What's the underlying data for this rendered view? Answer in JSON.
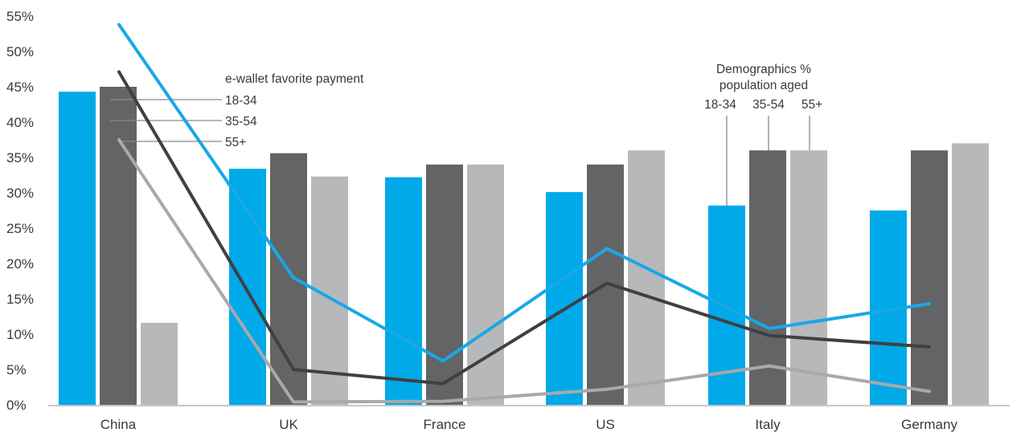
{
  "chart_data": {
    "type": "bar",
    "categories": [
      "China",
      "UK",
      "France",
      "US",
      "Italy",
      "Germany"
    ],
    "ylim": [
      0,
      55
    ],
    "y_ticks": [
      "0%",
      "5%",
      "10%",
      "15%",
      "20%",
      "25%",
      "30%",
      "35%",
      "40%",
      "45%",
      "50%",
      "55%"
    ],
    "grid": false,
    "bar_series": [
      {
        "key": "demo_18_34",
        "color": "#00a9e8",
        "values": [
          44.3,
          33.4,
          32.2,
          30.1,
          28.2,
          27.5
        ]
      },
      {
        "key": "demo_35_54",
        "color": "#636466",
        "values": [
          45.0,
          35.6,
          34.0,
          34.0,
          36.0,
          36.0
        ]
      },
      {
        "key": "demo_55_plus",
        "color": "#b7b8ba",
        "values": [
          11.6,
          32.3,
          34.0,
          36.0,
          36.0,
          37.0
        ]
      }
    ],
    "line_series": [
      {
        "key": "wallet_18_34",
        "color": "#18a9e6",
        "values": [
          53.8,
          18.0,
          6.2,
          22.1,
          10.8,
          14.3
        ]
      },
      {
        "key": "wallet_35_54",
        "color": "#3f4042",
        "values": [
          47.1,
          5.0,
          3.0,
          17.2,
          9.8,
          8.2
        ]
      },
      {
        "key": "wallet_55_plus",
        "color": "#a8a9ab",
        "values": [
          37.5,
          0.4,
          0.5,
          2.2,
          5.5,
          1.9
        ]
      }
    ],
    "annotations": {
      "wallet": {
        "title": "e-wallet favorite payment",
        "labels": [
          "18-34",
          "35-54",
          "55+"
        ]
      },
      "demographics": {
        "title_line1": "Demographics %",
        "title_line2": "population aged",
        "labels": [
          "18-34",
          "35-54",
          "55+"
        ]
      }
    },
    "axis_color": "#b5b5b5",
    "leader_color": "#8a8a8a"
  }
}
